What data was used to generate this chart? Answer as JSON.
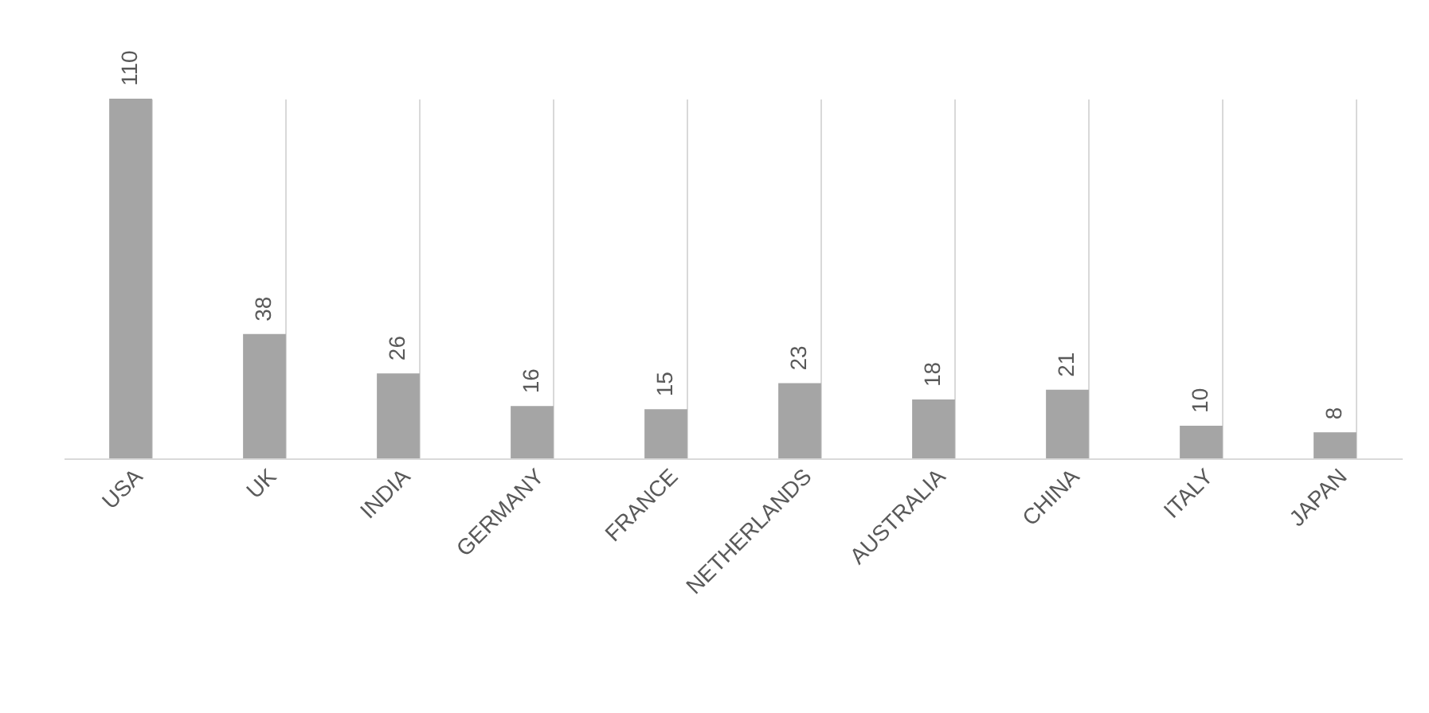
{
  "chart_data": {
    "type": "bar",
    "categories": [
      "USA",
      "UK",
      "INDIA",
      "GERMANY",
      "FRANCE",
      "NETHERLANDS",
      "AUSTRALIA",
      "CHINA",
      "ITALY",
      "JAPAN"
    ],
    "values": [
      110,
      38,
      26,
      16,
      15,
      23,
      18,
      21,
      10,
      8
    ],
    "color": "#a5a5a5",
    "data_labels": true,
    "grid": "x"
  }
}
